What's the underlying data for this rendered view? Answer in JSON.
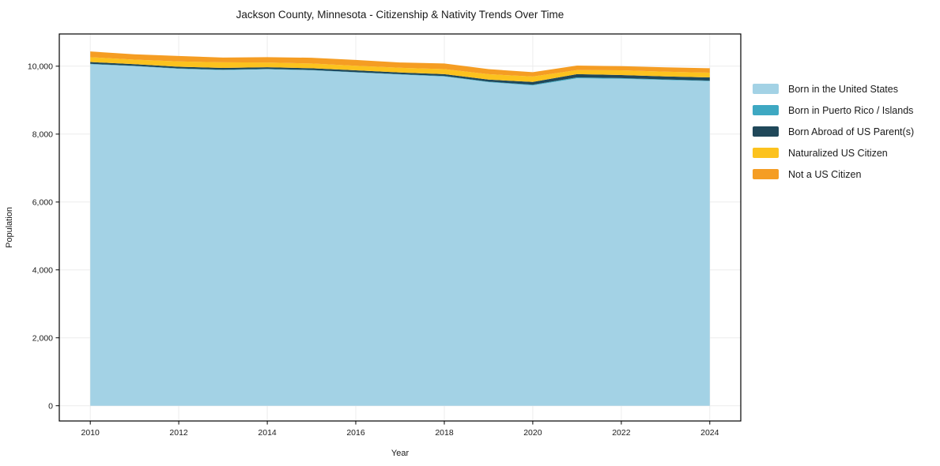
{
  "title": "Jackson County, Minnesota - Citizenship & Nativity Trends Over Time",
  "chart_data": {
    "type": "area",
    "stacked": true,
    "title": "Jackson County, Minnesota - Citizenship & Nativity Trends Over Time",
    "xlabel": "Year",
    "ylabel": "Population",
    "x": [
      2010,
      2011,
      2012,
      2013,
      2014,
      2015,
      2016,
      2017,
      2018,
      2019,
      2020,
      2021,
      2022,
      2023,
      2024
    ],
    "series": [
      {
        "name": "Born in the United States",
        "color": "#a3d2e5",
        "values": [
          10060,
          10000,
          9925,
          9885,
          9910,
          9880,
          9815,
          9755,
          9695,
          9530,
          9435,
          9645,
          9630,
          9595,
          9560
        ]
      },
      {
        "name": "Born in Puerto Rico / Islands",
        "color": "#3ea8c2",
        "values": [
          10,
          10,
          10,
          10,
          10,
          10,
          10,
          10,
          15,
          15,
          20,
          25,
          20,
          15,
          15
        ]
      },
      {
        "name": "Born Abroad of US Parent(s)",
        "color": "#20485a",
        "values": [
          55,
          50,
          50,
          55,
          50,
          50,
          55,
          50,
          55,
          60,
          80,
          95,
          90,
          90,
          95
        ]
      },
      {
        "name": "Naturalized US Citizen",
        "color": "#fcc21e",
        "values": [
          140,
          135,
          155,
          165,
          140,
          140,
          135,
          140,
          150,
          160,
          160,
          120,
          140,
          140,
          140
        ]
      },
      {
        "name": "Not a US Citizen",
        "color": "#f59d23",
        "values": [
          170,
          155,
          160,
          140,
          155,
          170,
          170,
          155,
          165,
          150,
          130,
          135,
          120,
          125,
          130
        ]
      }
    ],
    "x_ticks": [
      2010,
      2012,
      2014,
      2016,
      2018,
      2020,
      2022,
      2024
    ],
    "y_ticks": [
      "0",
      "2,000",
      "4,000",
      "6,000",
      "8,000",
      "10,000"
    ],
    "y_tick_values": [
      0,
      2000,
      4000,
      6000,
      8000,
      10000
    ],
    "xlim": [
      2009.3,
      2024.7
    ],
    "ylim": [
      -450,
      10950
    ],
    "grid": true,
    "grid_color": "#ececec",
    "frame_color": "#000000",
    "legend_position": "right-outside"
  }
}
